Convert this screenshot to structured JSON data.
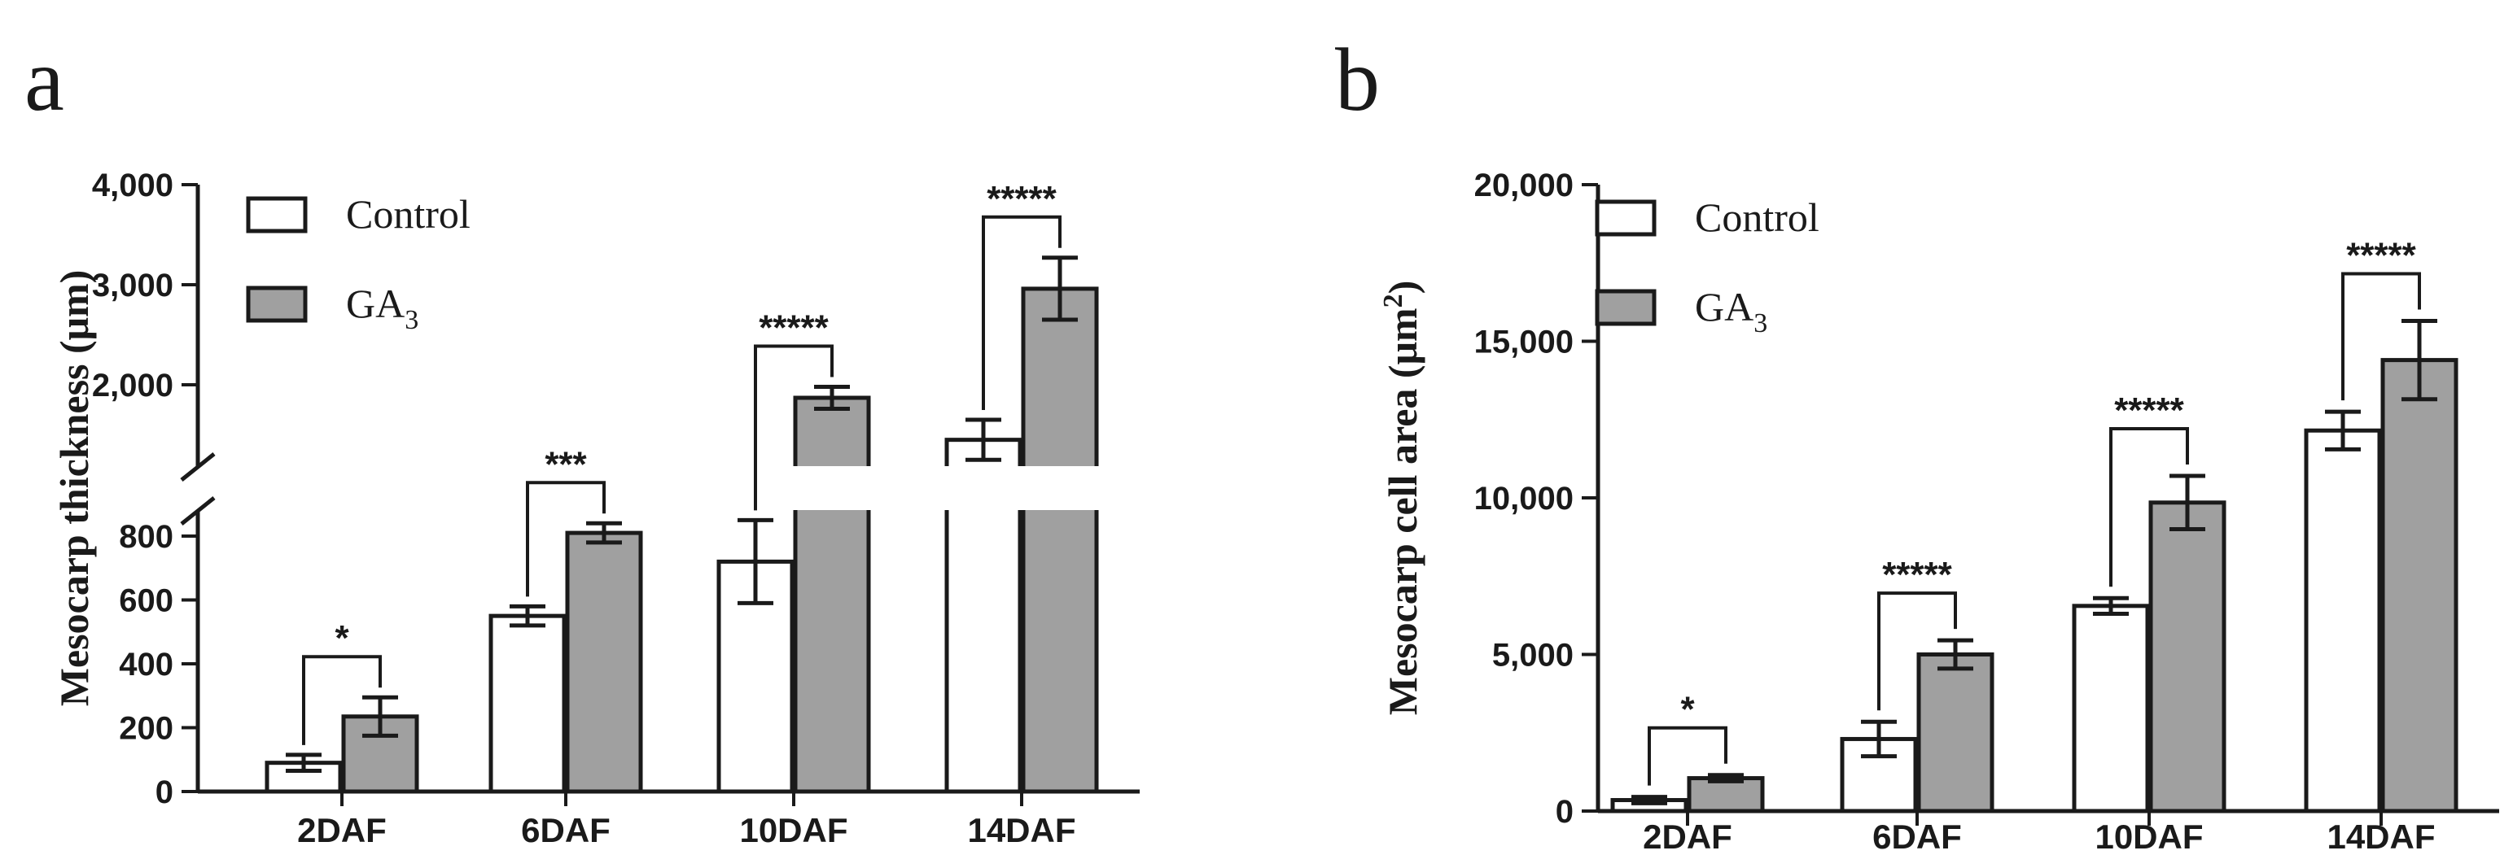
{
  "legend": {
    "control_label": "Control",
    "ga3_label_main": "GA",
    "ga3_label_sub": "3",
    "control_color": "#ffffff",
    "ga3_color": "#a0a0a0"
  },
  "chart_data": [
    {
      "type": "bar",
      "panel_label": "a",
      "title": "",
      "xlabel": "",
      "ylabel": "Mesocarp thickness (μm)",
      "categories": [
        "2DAF",
        "6DAF",
        "10DAF",
        "14DAF"
      ],
      "series": [
        {
          "name": "Control",
          "values": [
            90,
            550,
            720,
            1450
          ],
          "errors": [
            25,
            30,
            130,
            200
          ]
        },
        {
          "name": "GA3",
          "values": [
            235,
            810,
            1870,
            2960
          ],
          "errors": [
            60,
            30,
            110,
            310
          ]
        }
      ],
      "y_axis_break": true,
      "ylim_lower": [
        0,
        900
      ],
      "ylim_upper": [
        1200,
        4000
      ],
      "yticks_lower": [
        0,
        200,
        400,
        600,
        800
      ],
      "ytick_labels_lower": [
        "0",
        "200",
        "400",
        "600",
        "800"
      ],
      "yticks_upper": [
        2000,
        3000,
        4000
      ],
      "ytick_labels_upper": [
        "2,000",
        "3,000",
        "4,000"
      ],
      "significance": [
        "*",
        "***",
        "*****",
        "*****"
      ],
      "legend_position": "top-left"
    },
    {
      "type": "bar",
      "panel_label": "b",
      "title": "",
      "xlabel": "",
      "ylabel_main": "Mesocarp cell area (μm",
      "ylabel_sup": "2",
      "ylabel_close": ")",
      "categories": [
        "2DAF",
        "6DAF",
        "10DAF",
        "14DAF"
      ],
      "series": [
        {
          "name": "Control",
          "values": [
            350,
            2300,
            6550,
            12150
          ],
          "errors": [
            100,
            550,
            250,
            600
          ]
        },
        {
          "name": "GA3",
          "values": [
            1050,
            5000,
            9850,
            14400
          ],
          "errors": [
            100,
            450,
            850,
            1250
          ]
        }
      ],
      "ylim": [
        0,
        20000
      ],
      "yticks": [
        0,
        5000,
        10000,
        15000,
        20000
      ],
      "ytick_labels": [
        "0",
        "5,000",
        "10,000",
        "15,000",
        "20,000"
      ],
      "significance": [
        "*",
        "*****",
        "*****",
        "*****"
      ],
      "legend_position": "top-left"
    }
  ]
}
